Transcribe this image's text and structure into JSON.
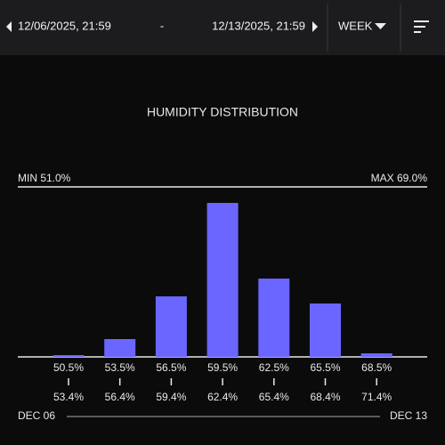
{
  "header": {
    "start": "12/06/2025, 21:59",
    "separator": "-",
    "end": "12/13/2025, 21:59",
    "period": "WEEK"
  },
  "chart_data": {
    "type": "bar",
    "title": "HUMIDITY DISTRIBUTION",
    "min_label": "MIN 51.0%",
    "max_label": "MAX 69.0%",
    "categories": [
      "50.5%",
      "53.5%",
      "56.5%",
      "59.5%",
      "62.5%",
      "65.5%",
      "68.5%"
    ],
    "category_ends": [
      "53.4%",
      "56.4%",
      "59.4%",
      "62.4%",
      "65.4%",
      "68.4%",
      "71.4%"
    ],
    "values": [
      2,
      20,
      68,
      173,
      88,
      60,
      4
    ],
    "color": "#6b66ff",
    "start_label": "DEC 06",
    "end_label": "DEC 13"
  }
}
